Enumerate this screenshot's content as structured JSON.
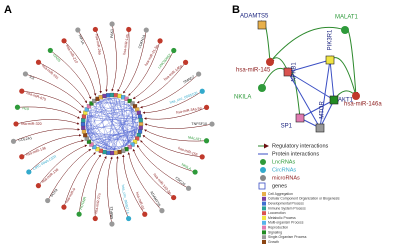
{
  "panel_a": {
    "label": "A",
    "nodes": [
      {
        "name": "PAK1",
        "kind": "gene"
      },
      {
        "name": "hsa-miR-145",
        "kind": "mirna"
      },
      {
        "name": "CDKN1A",
        "kind": "gene"
      },
      {
        "name": "hsa-miR-21-5p",
        "kind": "mirna"
      },
      {
        "name": "LINC00052",
        "kind": "lnc"
      },
      {
        "name": "hsa-miR-146a",
        "kind": "mirna"
      },
      {
        "name": "SMAD7",
        "kind": "gene"
      },
      {
        "name": "hsa_circ_0005105",
        "kind": "circ"
      },
      {
        "name": "hsa-miR-34a-5p",
        "kind": "mirna"
      },
      {
        "name": "TNFSF10",
        "kind": "gene"
      },
      {
        "name": "MALAT1",
        "kind": "lnc"
      },
      {
        "name": "hsa-miR-155",
        "kind": "mirna"
      },
      {
        "name": "NKILA",
        "kind": "lnc"
      },
      {
        "name": "CDC20",
        "kind": "gene"
      },
      {
        "name": "hsa-miR-140-3p",
        "kind": "mirna"
      },
      {
        "name": "ADAMTS5",
        "kind": "gene"
      },
      {
        "name": "hsa-miR-93",
        "kind": "mirna"
      },
      {
        "name": "hsa_circ_0045714",
        "kind": "circ"
      },
      {
        "name": "MMP13",
        "kind": "gene"
      },
      {
        "name": "hsa-miR-27a",
        "kind": "mirna"
      },
      {
        "name": "HOTAIR",
        "kind": "lnc"
      },
      {
        "name": "hsa-miR-9",
        "kind": "mirna"
      },
      {
        "name": "SOX9",
        "kind": "gene"
      },
      {
        "name": "hsa-miR-138",
        "kind": "mirna"
      },
      {
        "name": "CIRC-RNA-CER",
        "kind": "circ"
      },
      {
        "name": "hsa-miR-136",
        "kind": "mirna"
      },
      {
        "name": "COL2A1",
        "kind": "gene"
      },
      {
        "name": "hsa-miR-320",
        "kind": "mirna"
      },
      {
        "name": "H19",
        "kind": "lnc"
      },
      {
        "name": "hsa-miR-675",
        "kind": "mirna"
      },
      {
        "name": "IL6",
        "kind": "gene"
      },
      {
        "name": "hsa-miR-101",
        "kind": "mirna"
      },
      {
        "name": "GAS5",
        "kind": "lnc"
      },
      {
        "name": "hsa-miR-210",
        "kind": "mirna"
      },
      {
        "name": "HIF1A",
        "kind": "gene"
      },
      {
        "name": "hsa-miR-26a",
        "kind": "mirna"
      }
    ]
  },
  "panel_b": {
    "label": "B",
    "nodes": [
      {
        "name": "ADAMTS5",
        "kind": "gene"
      },
      {
        "name": "MALAT1",
        "kind": "lnc"
      },
      {
        "name": "hsa-miR-145",
        "kind": "mirna"
      },
      {
        "name": "NKILA",
        "kind": "lnc"
      },
      {
        "name": "NFKB1",
        "kind": "gene"
      },
      {
        "name": "PIK3R1",
        "kind": "gene"
      },
      {
        "name": "hsa-miR-146a",
        "kind": "mirna"
      },
      {
        "name": "SP1",
        "kind": "gene"
      },
      {
        "name": "AKT1",
        "kind": "gene"
      },
      {
        "name": "MTOR",
        "kind": "gene"
      }
    ],
    "edges": [
      [
        1,
        2,
        "reg"
      ],
      [
        1,
        6,
        "reg"
      ],
      [
        2,
        0,
        "reg"
      ],
      [
        2,
        4,
        "reg"
      ],
      [
        3,
        4,
        "reg"
      ],
      [
        6,
        5,
        "reg"
      ],
      [
        6,
        8,
        "reg"
      ],
      [
        4,
        7,
        "reg"
      ],
      [
        4,
        5,
        "prot"
      ],
      [
        4,
        8,
        "prot"
      ],
      [
        5,
        8,
        "prot"
      ],
      [
        5,
        9,
        "prot"
      ],
      [
        7,
        9,
        "prot"
      ],
      [
        8,
        9,
        "prot"
      ],
      [
        4,
        9,
        "prot"
      ],
      [
        7,
        8,
        "prot"
      ]
    ]
  },
  "legend": {
    "items": [
      {
        "name": "Regulatory interactions",
        "kind": "reg"
      },
      {
        "name": "Protein interactions",
        "kind": "prot"
      },
      {
        "name": "LncRNAs",
        "kind": "lnc"
      },
      {
        "name": "CircRNAs",
        "kind": "circ"
      },
      {
        "name": "microRNAs",
        "kind": "mirna"
      },
      {
        "name": "genes",
        "kind": "gene"
      }
    ],
    "go_terms": [
      {
        "name": "Cell Aggregation",
        "color": "#e8b04a"
      },
      {
        "name": "Cellular Component Organization or Biogenesis",
        "color": "#7a3fa0"
      },
      {
        "name": "Developmental Process",
        "color": "#3f6fd1"
      },
      {
        "name": "Immune System Process",
        "color": "#2aa198"
      },
      {
        "name": "Locomotion",
        "color": "#d9534f"
      },
      {
        "name": "Metabolic Process",
        "color": "#f0e442"
      },
      {
        "name": "Multi-organism Process",
        "color": "#56b4e9"
      },
      {
        "name": "Reproduction",
        "color": "#e07bb0"
      },
      {
        "name": "Signaling",
        "color": "#228b22"
      },
      {
        "name": "Single-Organism Process",
        "color": "#999999"
      },
      {
        "name": "Growth",
        "color": "#8b4513"
      }
    ]
  }
}
